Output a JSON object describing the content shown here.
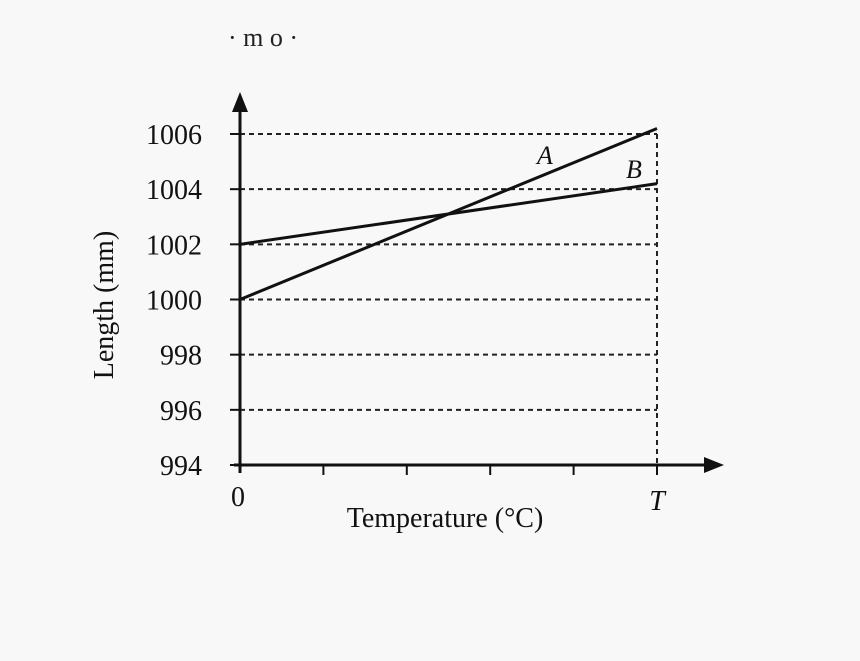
{
  "page": {
    "top_fragment": "· m o ·"
  },
  "chart_data": {
    "type": "line",
    "title": "",
    "xlabel": "Temperature (°C)",
    "ylabel": "Length (mm)",
    "x_tick_labels": [
      "0",
      "T"
    ],
    "x_minor_ticks": 5,
    "y_ticks": [
      994,
      996,
      998,
      1000,
      1002,
      1004,
      1006
    ],
    "ylim": [
      994,
      1006
    ],
    "grid": "dashed horizontal lines at y ticks, dashed vertical at T",
    "legend": "none; series labelled inline near line ends",
    "series": [
      {
        "name": "A",
        "x": [
          "0",
          "T"
        ],
        "values": [
          1000,
          1006.2
        ]
      },
      {
        "name": "B",
        "x": [
          "0",
          "T"
        ],
        "values": [
          1002,
          1004.2
        ]
      }
    ],
    "colors": {
      "line": "#111111",
      "grid": "#222222"
    }
  }
}
